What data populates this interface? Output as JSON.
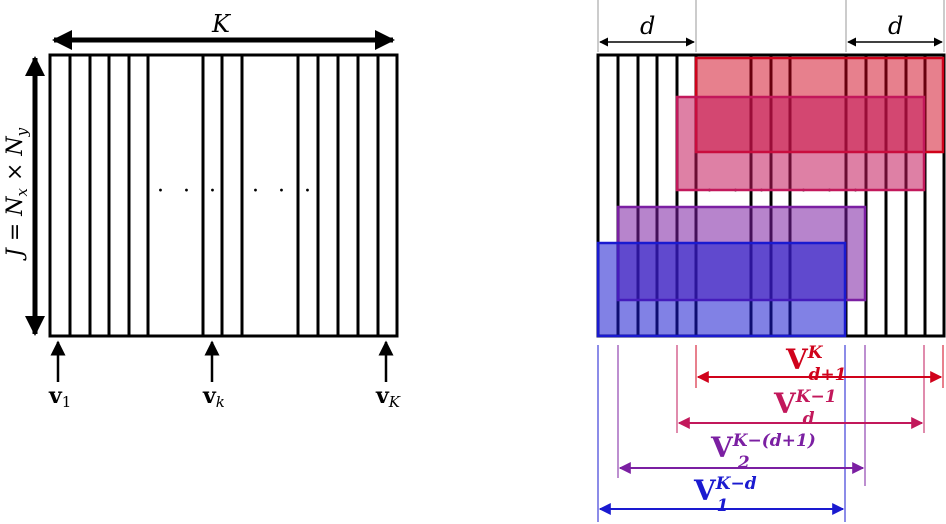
{
  "left_diagram": {
    "top_label": "K",
    "side_label": "J = N",
    "side_label_sub1": "x",
    "side_label_mid": " × N",
    "side_label_sub2": "y",
    "dots_1": "· · ·",
    "dots_2": "· · ·",
    "vectors": [
      {
        "base": "v",
        "sub": "1"
      },
      {
        "base": "v",
        "sub": "k"
      },
      {
        "base": "v",
        "sub": "K"
      }
    ]
  },
  "right_diagram": {
    "d_label_left": "d",
    "d_label_right": "d",
    "dots_1": "· · ·",
    "dots_2": "· · ·",
    "windows": [
      {
        "base": "V",
        "sup": "K",
        "sub": "d+1",
        "color": "#d0021b"
      },
      {
        "base": "V",
        "sup": "K−1",
        "sub": "d",
        "color": "#c2185b"
      },
      {
        "base": "V",
        "sup": "K−(d+1)",
        "sub": "2",
        "color": "#7b1fa2"
      },
      {
        "base": "V",
        "sup": "K−d",
        "sub": "1",
        "color": "#1a1ad0"
      }
    ]
  }
}
